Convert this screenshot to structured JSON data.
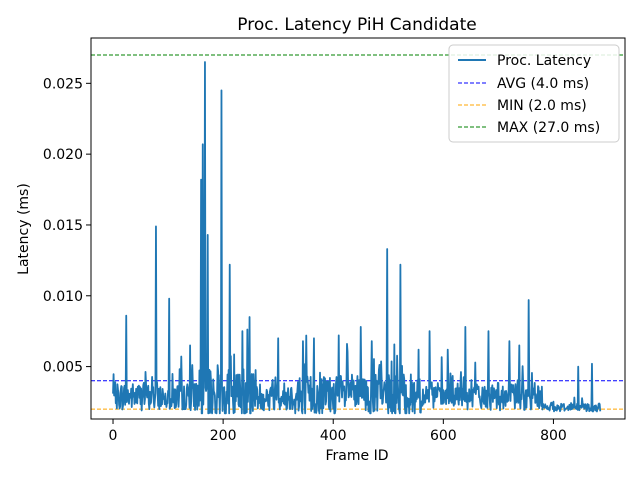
{
  "chart_data": {
    "type": "line",
    "title": "Proc. Latency PiH Candidate",
    "xlabel": "Frame ID",
    "ylabel": "Latency (ms)",
    "xlim": [
      -40,
      930
    ],
    "ylim": [
      0.0013,
      0.0282
    ],
    "xticks": [
      0,
      200,
      400,
      600,
      800
    ],
    "xtick_labels": [
      "0",
      "200",
      "400",
      "600",
      "800"
    ],
    "yticks": [
      0.005,
      0.01,
      0.015,
      0.02,
      0.025
    ],
    "ytick_labels": [
      "0.005",
      "0.010",
      "0.015",
      "0.020",
      "0.025"
    ],
    "series": [
      {
        "name": "Proc. Latency",
        "color": "#1f77b4",
        "x_start": 0,
        "x_end": 885,
        "baseline": 0.0028,
        "noise": 0.001,
        "spikes": [
          [
            24,
            0.0086
          ],
          [
            78,
            0.0149
          ],
          [
            102,
            0.0098
          ],
          [
            140,
            0.0065
          ],
          [
            160,
            0.0182
          ],
          [
            163,
            0.0207
          ],
          [
            167,
            0.0265
          ],
          [
            172,
            0.0143
          ],
          [
            197,
            0.0245
          ],
          [
            212,
            0.0122
          ],
          [
            235,
            0.0075
          ],
          [
            248,
            0.0085
          ],
          [
            300,
            0.007
          ],
          [
            345,
            0.0068
          ],
          [
            365,
            0.007
          ],
          [
            410,
            0.0072
          ],
          [
            425,
            0.0066
          ],
          [
            450,
            0.0078
          ],
          [
            470,
            0.0068
          ],
          [
            498,
            0.0133
          ],
          [
            522,
            0.0122
          ],
          [
            555,
            0.0062
          ],
          [
            575,
            0.0075
          ],
          [
            608,
            0.0062
          ],
          [
            640,
            0.0078
          ],
          [
            682,
            0.0075
          ],
          [
            720,
            0.0068
          ],
          [
            738,
            0.0065
          ],
          [
            755,
            0.0097
          ],
          [
            845,
            0.005
          ],
          [
            870,
            0.0052
          ]
        ]
      }
    ],
    "reference_lines": [
      {
        "name": "AVG (4.0 ms)",
        "value": 0.004,
        "color": "#0000ff"
      },
      {
        "name": "MIN (2.0 ms)",
        "value": 0.002,
        "color": "#ffa500"
      },
      {
        "name": "MAX (27.0 ms)",
        "value": 0.027,
        "color": "#008000"
      }
    ],
    "legend": {
      "placement": "top-right",
      "entries": [
        "Proc. Latency",
        "AVG (4.0 ms)",
        "MIN (2.0 ms)",
        "MAX (27.0 ms)"
      ]
    }
  }
}
